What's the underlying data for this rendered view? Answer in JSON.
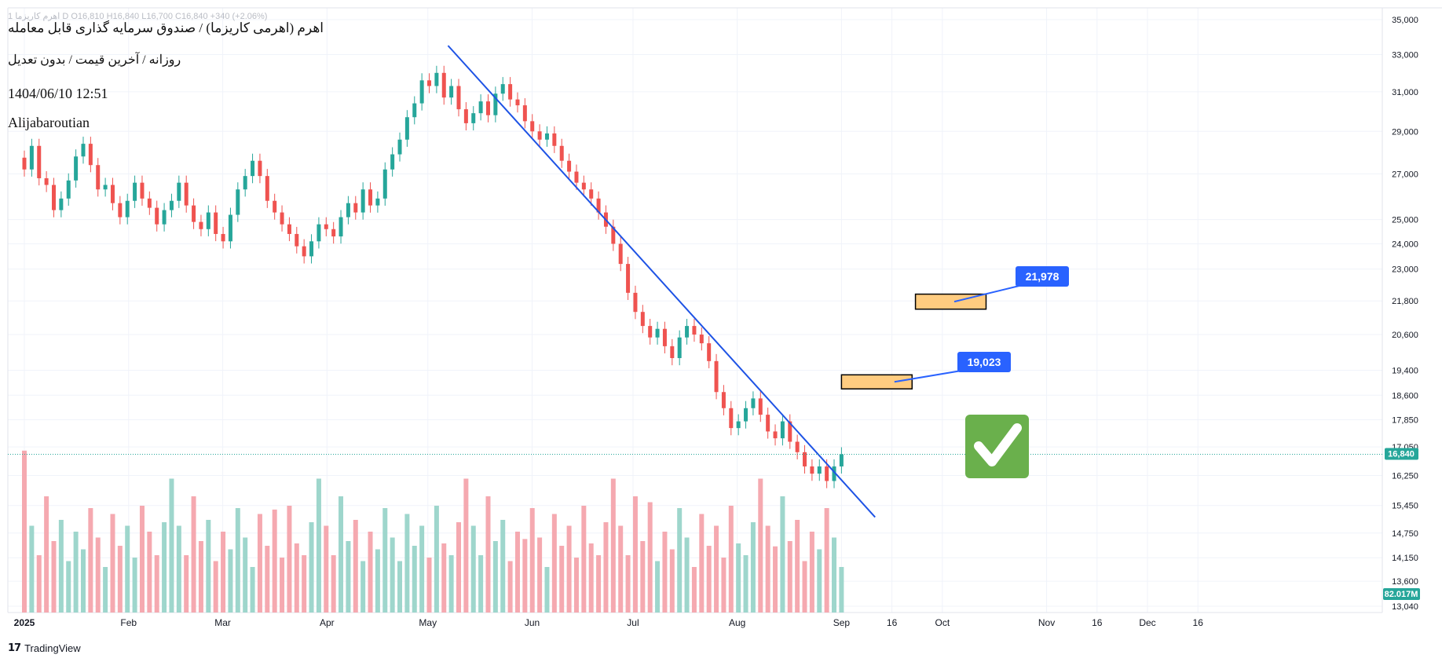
{
  "header": {
    "ticker_line": "1 اهرم کاریزما D O16,810 H16,840 L16,700 C16,840 +340 (+2.06%)",
    "title": "اهرم (اهرمی کاریزما) / صندوق سرمایه گذاری قابل معامله",
    "subtitle": "روزانه / آخرین قیمت / بدون تعدیل",
    "timestamp": "1404/06/10 12:51",
    "author": "Alijabaroutian"
  },
  "footer": {
    "brand": "TradingView",
    "logo_icon": "tradingview-logo-icon"
  },
  "colors": {
    "up": "#26a69a",
    "down": "#ef5350",
    "vol_up": "#9ed6cc",
    "vol_down": "#f5a9b0",
    "trendline": "#1e53e5",
    "label_bg": "#2962ff",
    "zone_fill": "#ffcc80",
    "check_bg": "#6ab04c",
    "last_price": "#26a69a"
  },
  "price_axis": {
    "ticks": [
      "35,000",
      "33,000",
      "31,000",
      "29,000",
      "27,000",
      "25,000",
      "24,000",
      "23,000",
      "21,800",
      "20,600",
      "19,400",
      "18,600",
      "17,850",
      "17,050",
      "16,250",
      "15,450",
      "14,750",
      "14,150",
      "13,600",
      "13,040"
    ],
    "last_price_label": "16,840",
    "volume_label": "82.017M"
  },
  "time_axis": {
    "labels": [
      "2025",
      "Feb",
      "Mar",
      "Apr",
      "May",
      "Jun",
      "Jul",
      "Aug",
      "Sep",
      "16",
      "Oct",
      "Nov",
      "16",
      "Dec",
      "16"
    ]
  },
  "annotations": {
    "target1_label": "19,023",
    "target2_label": "21,978",
    "checkmark_icon": "checkmark-icon"
  },
  "chart_data": {
    "type": "candlestick",
    "title": "اهرم (اهرمی کاریزما) / صندوق سرمایه گذاری قابل معامله",
    "interval": "daily",
    "x_range": [
      "2025-01-01",
      "2025-12-31"
    ],
    "ylim": [
      13040,
      35000
    ],
    "y_scale": "log",
    "grid": true,
    "closes": [
      27200,
      28300,
      26800,
      26500,
      25400,
      25900,
      26700,
      27800,
      28400,
      27400,
      26300,
      26500,
      25700,
      25100,
      25800,
      26600,
      25900,
      25500,
      24800,
      25400,
      25800,
      26600,
      25600,
      24900,
      24600,
      25300,
      24400,
      24100,
      25200,
      26300,
      26900,
      27600,
      26900,
      25800,
      25300,
      24800,
      24400,
      23900,
      23500,
      24100,
      24800,
      24600,
      24300,
      25100,
      25700,
      25300,
      26300,
      25600,
      25900,
      27200,
      27900,
      28600,
      29700,
      30400,
      31600,
      31300,
      32000,
      30700,
      31300,
      30100,
      29400,
      29900,
      30500,
      29800,
      30900,
      31400,
      30600,
      30300,
      29500,
      29000,
      28600,
      28900,
      28300,
      27600,
      27100,
      26600,
      26300,
      25900,
      25300,
      24700,
      24000,
      23200,
      22100,
      21400,
      20900,
      20500,
      20800,
      20200,
      19800,
      20500,
      20900,
      20600,
      20300,
      19700,
      18700,
      18200,
      17600,
      17800,
      18200,
      18500,
      18000,
      17500,
      17300,
      17800,
      17200,
      16900,
      16500,
      16300,
      16500,
      16100,
      16500,
      16840
    ],
    "volume_unit": "M",
    "last_volume": 82.017,
    "last_close": 16840,
    "trendline": {
      "from": {
        "date": "2025-05-07",
        "price": 33500
      },
      "to": {
        "date": "2025-09-11",
        "price": 15150
      }
    },
    "target_zones": [
      {
        "from_date": "2025-09-01",
        "to_date": "2025-09-22",
        "low": 18800,
        "high": 19250,
        "label": "19,023"
      },
      {
        "from_date": "2025-09-23",
        "to_date": "2025-10-14",
        "low": 21500,
        "high": 22050,
        "label": "21,978"
      }
    ]
  }
}
